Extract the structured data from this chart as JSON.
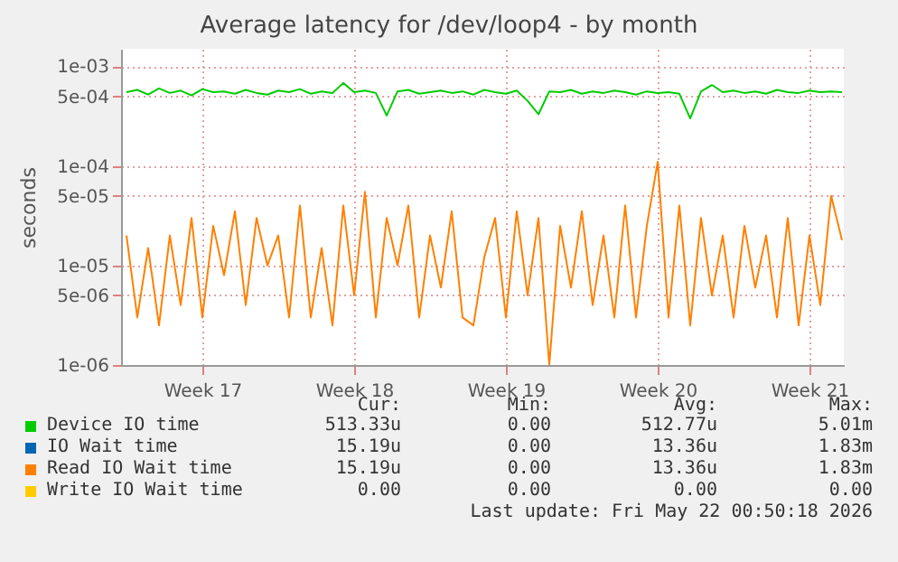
{
  "chart_data": {
    "type": "line",
    "title": "Average latency for /dev/loop4 - by month",
    "ylabel": "seconds",
    "x": [
      "2026-04-19T00:00",
      "2026-04-19T12:00",
      "2026-04-20T00:00",
      "2026-04-20T12:00",
      "2026-04-21T00:00",
      "2026-04-21T12:00",
      "2026-04-22T00:00",
      "2026-04-22T12:00",
      "2026-04-23T00:00",
      "2026-04-23T12:00",
      "2026-04-24T00:00",
      "2026-04-24T12:00",
      "2026-04-25T00:00",
      "2026-04-25T12:00",
      "2026-04-26T00:00",
      "2026-04-26T12:00",
      "2026-04-27T00:00",
      "2026-04-27T12:00",
      "2026-04-28T00:00",
      "2026-04-28T12:00",
      "2026-04-29T00:00",
      "2026-04-29T12:00",
      "2026-04-30T00:00",
      "2026-04-30T12:00",
      "2026-05-01T00:00",
      "2026-05-01T12:00",
      "2026-05-02T00:00",
      "2026-05-02T12:00",
      "2026-05-03T00:00",
      "2026-05-03T12:00",
      "2026-05-04T00:00",
      "2026-05-04T12:00",
      "2026-05-05T00:00",
      "2026-05-05T12:00",
      "2026-05-06T00:00",
      "2026-05-06T12:00",
      "2026-05-07T00:00",
      "2026-05-07T12:00",
      "2026-05-08T00:00",
      "2026-05-08T12:00",
      "2026-05-09T00:00",
      "2026-05-09T12:00",
      "2026-05-10T00:00",
      "2026-05-10T12:00",
      "2026-05-11T00:00",
      "2026-05-11T12:00",
      "2026-05-12T00:00",
      "2026-05-12T12:00",
      "2026-05-13T00:00",
      "2026-05-13T12:00",
      "2026-05-14T00:00",
      "2026-05-14T12:00",
      "2026-05-15T00:00",
      "2026-05-15T12:00",
      "2026-05-16T00:00",
      "2026-05-16T12:00",
      "2026-05-17T00:00",
      "2026-05-17T12:00",
      "2026-05-18T00:00",
      "2026-05-18T12:00",
      "2026-05-19T00:00",
      "2026-05-19T12:00",
      "2026-05-20T00:00",
      "2026-05-20T12:00",
      "2026-05-21T00:00",
      "2026-05-21T12:00",
      "2026-05-22T00:00"
    ],
    "series": [
      {
        "name": "Device IO time",
        "color": "#00cc00",
        "values": [
          0.00055,
          0.00058,
          0.00052,
          0.0006,
          0.00054,
          0.00057,
          0.00051,
          0.00059,
          0.00055,
          0.00056,
          0.00053,
          0.00058,
          0.00054,
          0.00052,
          0.00057,
          0.00055,
          0.00059,
          0.00053,
          0.00056,
          0.00054,
          0.00068,
          0.00055,
          0.00057,
          0.00054,
          0.00032,
          0.00056,
          0.00058,
          0.00053,
          0.00055,
          0.00057,
          0.00054,
          0.00056,
          0.00052,
          0.00058,
          0.00055,
          0.00053,
          0.00057,
          0.00045,
          0.00033,
          0.00056,
          0.00055,
          0.00058,
          0.00053,
          0.00056,
          0.00054,
          0.00057,
          0.00055,
          0.00052,
          0.00056,
          0.00054,
          0.00055,
          0.00053,
          0.0003,
          0.00056,
          0.00065,
          0.00055,
          0.00057,
          0.00054,
          0.00056,
          0.00053,
          0.00058,
          0.00055,
          0.00054,
          0.00057,
          0.00055,
          0.00056,
          0.00055
        ]
      },
      {
        "name": "IO Wait time",
        "color": "#0066b3",
        "values": [
          null,
          null,
          null,
          null,
          null,
          null,
          null,
          null,
          null,
          null,
          null,
          null,
          null,
          null,
          null,
          null,
          null,
          null,
          null,
          null,
          null,
          null,
          null,
          null,
          null,
          null,
          null,
          null,
          null,
          null,
          null,
          null,
          null,
          null,
          null,
          null,
          null,
          null,
          null,
          null,
          null,
          null,
          null,
          null,
          null,
          null,
          null,
          null,
          null,
          null,
          null,
          null,
          null,
          null,
          null,
          null,
          null,
          null,
          null,
          null,
          null,
          null,
          null,
          null,
          null,
          null,
          null
        ]
      },
      {
        "name": "Read IO Wait time",
        "color": "#ff8000",
        "values": [
          2e-05,
          3e-06,
          1.5e-05,
          2.5e-06,
          2e-05,
          4e-06,
          3e-05,
          3e-06,
          2.5e-05,
          8e-06,
          3.5e-05,
          4e-06,
          3e-05,
          1e-05,
          2e-05,
          3e-06,
          4e-05,
          3e-06,
          1.5e-05,
          2.5e-06,
          4e-05,
          5e-06,
          5.5e-05,
          3e-06,
          3e-05,
          1e-05,
          4e-05,
          3e-06,
          2e-05,
          6e-06,
          3.5e-05,
          3e-06,
          2.5e-06,
          1.2e-05,
          3e-05,
          3e-06,
          3.5e-05,
          5e-06,
          3e-05,
          1e-06,
          2.5e-05,
          6e-06,
          3.5e-05,
          4e-06,
          2e-05,
          3e-06,
          4e-05,
          3e-06,
          2.5e-05,
          0.00011,
          3e-06,
          4e-05,
          2.5e-06,
          3e-05,
          5e-06,
          2e-05,
          3e-06,
          2.5e-05,
          6e-06,
          2e-05,
          3e-06,
          3e-05,
          2.5e-06,
          2e-05,
          4e-06,
          5e-05,
          1.8e-05
        ]
      },
      {
        "name": "Write IO Wait time",
        "color": "#ffcc00",
        "values": [
          null,
          null,
          null,
          null,
          null,
          null,
          null,
          null,
          null,
          null,
          null,
          null,
          null,
          null,
          null,
          null,
          null,
          null,
          null,
          null,
          null,
          null,
          null,
          null,
          null,
          null,
          null,
          null,
          null,
          null,
          null,
          null,
          null,
          null,
          null,
          null,
          null,
          null,
          null,
          null,
          null,
          null,
          null,
          null,
          null,
          null,
          null,
          null,
          null,
          null,
          null,
          null,
          null,
          null,
          null,
          null,
          null,
          null,
          null,
          null,
          null,
          null,
          null,
          null,
          null,
          null,
          null
        ]
      }
    ],
    "log": "y",
    "ylim": [
      1e-06,
      0.0015
    ],
    "yticks": [
      {
        "value": 1e-06,
        "label": "1e-06"
      },
      {
        "value": 5e-06,
        "label": "5e-06"
      },
      {
        "value": 1e-05,
        "label": "1e-05"
      },
      {
        "value": 5e-05,
        "label": "5e-05"
      },
      {
        "value": 0.0001,
        "label": "1e-04"
      },
      {
        "value": 0.0005,
        "label": "5e-04"
      },
      {
        "value": 0.001,
        "label": "1e-03"
      }
    ],
    "xlim": [
      "2026-04-18T18:00",
      "2026-05-22T02:00"
    ],
    "xticks": [
      {
        "value": "2026-04-22T12:00",
        "label": "Week 17"
      },
      {
        "value": "2026-04-29T12:00",
        "label": "Week 18"
      },
      {
        "value": "2026-05-06T12:00",
        "label": "Week 19"
      },
      {
        "value": "2026-05-13T12:00",
        "label": "Week 20"
      },
      {
        "value": "2026-05-20T12:00",
        "label": "Week 21"
      }
    ],
    "grid": true,
    "legend": "bottom",
    "marker": "none",
    "line_style": "solid",
    "annotations": [
      "Cur:",
      "Min:",
      "Avg:",
      "Max:",
      "513.33u",
      "0.00",
      "512.77u",
      "5.01m",
      "15.19u",
      "0.00",
      "13.36u",
      "1.83m",
      "15.19u",
      "0.00",
      "13.36u",
      "1.83m",
      "0.00",
      "0.00",
      "0.00",
      "0.00",
      "Last update: Fri May 22 00:50:18 2026"
    ]
  }
}
